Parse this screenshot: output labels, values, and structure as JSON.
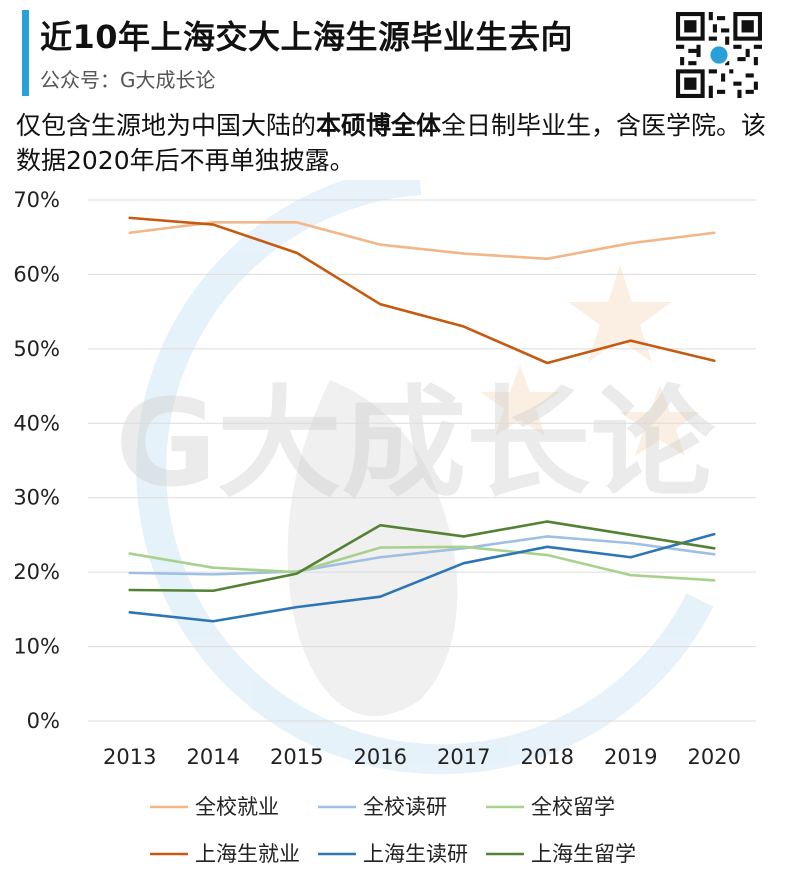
{
  "header": {
    "title": "近10年上海交大上海生源毕业生去向",
    "account": "公众号：G大成长论"
  },
  "note": {
    "before": "仅包含生源地为中国大陆的",
    "bold": "本硕博全体",
    "after": "全日制毕业生，含医学院。该数据2020年后不再单独披露。"
  },
  "watermark": {
    "text": "G大成长论"
  },
  "chart_data": {
    "type": "line",
    "categories": [
      "2013",
      "2014",
      "2015",
      "2016",
      "2017",
      "2018",
      "2019",
      "2020"
    ],
    "ylim": [
      0,
      70
    ],
    "yticks": [
      0,
      10,
      20,
      30,
      40,
      50,
      60,
      70
    ],
    "ytick_labels": [
      "0%",
      "10%",
      "20%",
      "30%",
      "40%",
      "50%",
      "60%",
      "70%"
    ],
    "grid": true,
    "legend_position": "bottom",
    "series": [
      {
        "name": "全校就业",
        "color": "#f2b687",
        "values": [
          65.6,
          67.0,
          67.0,
          64.0,
          62.8,
          62.1,
          64.2,
          65.6
        ]
      },
      {
        "name": "全校读研",
        "color": "#9fc0e1",
        "values": [
          19.9,
          19.7,
          20.1,
          22.0,
          23.2,
          24.8,
          23.9,
          22.4
        ]
      },
      {
        "name": "全校留学",
        "color": "#a9d18e",
        "values": [
          22.5,
          20.6,
          20.0,
          23.3,
          23.4,
          22.3,
          19.6,
          18.9
        ]
      },
      {
        "name": "上海生就业",
        "color": "#c55a11",
        "values": [
          67.6,
          66.7,
          62.9,
          56.0,
          53.0,
          48.1,
          51.1,
          48.4
        ]
      },
      {
        "name": "上海生读研",
        "color": "#2e75b6",
        "values": [
          14.6,
          13.4,
          15.3,
          16.7,
          21.2,
          23.4,
          22.0,
          25.1
        ]
      },
      {
        "name": "上海生留学",
        "color": "#548235",
        "values": [
          17.6,
          17.5,
          19.8,
          26.3,
          24.8,
          26.8,
          25.0,
          23.2
        ]
      }
    ]
  }
}
